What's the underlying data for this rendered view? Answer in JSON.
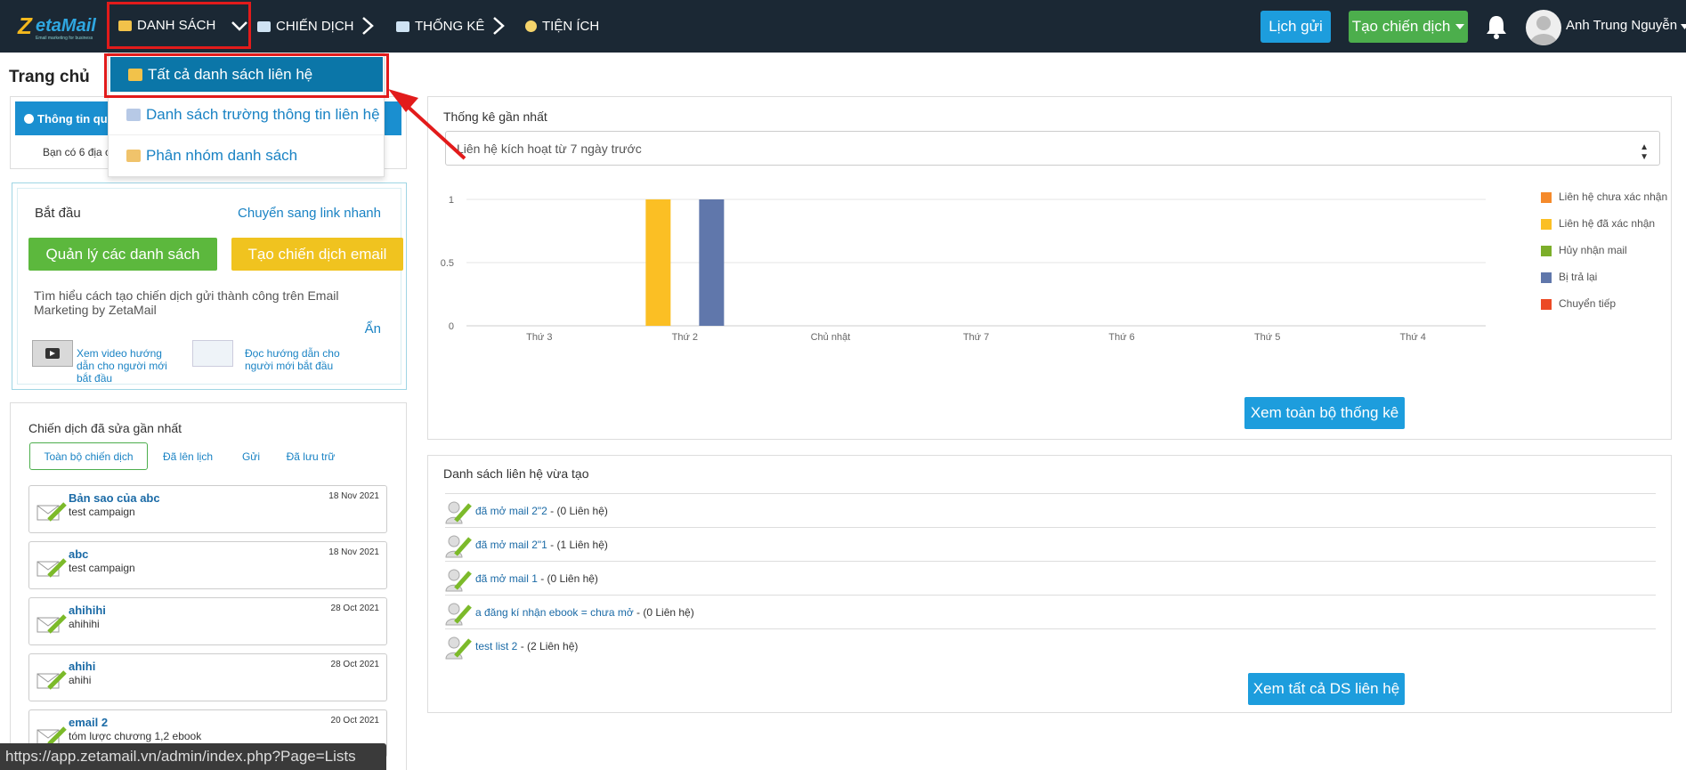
{
  "navbar": {
    "logo_text": "etaMail",
    "logo_letter": "Z",
    "logo_tagline": "Email marketing for business",
    "menu": [
      {
        "label": "DANH SÁCH"
      },
      {
        "label": "CHIẾN DỊCH"
      },
      {
        "label": "THỐNG KÊ"
      },
      {
        "label": "TIỆN ÍCH"
      }
    ],
    "schedule_button": "Lịch gửi",
    "create_campaign_button": "Tạo chiến dịch",
    "user_name": "Anh Trung Nguyễn"
  },
  "dropdown": {
    "items": [
      {
        "label": "Tất cả danh sách liên hệ"
      },
      {
        "label": "Danh sách trường thông tin liên hệ"
      },
      {
        "label": "Phân nhóm danh sách"
      }
    ]
  },
  "page": {
    "title": "Trang chủ"
  },
  "info_panel": {
    "heading": "Thông tin qua",
    "body": "Bạn có 6 địa c"
  },
  "start_panel": {
    "title": "Bắt đầu",
    "quick_link": "Chuyển sang link nhanh",
    "manage_lists_button": "Quản lý các danh sách",
    "create_email_button": "Tạo chiến dịch email",
    "learn_text": "Tìm hiểu cách tạo chiến dịch gửi thành công trên Email Marketing by ZetaMail",
    "hide_link": "Ẩn",
    "video_guide": "Xem video hướng dẫn cho người mới bắt đầu",
    "read_guide": "Đọc hướng dẫn cho người mới bắt đầu"
  },
  "campaigns_panel": {
    "title": "Chiến dịch đã sửa gần nhất",
    "tabs": [
      {
        "label": "Toàn bộ chiến dịch"
      },
      {
        "label": "Đã lên lịch"
      },
      {
        "label": "Gửi"
      },
      {
        "label": "Đã lưu trữ"
      }
    ],
    "items": [
      {
        "name": "Bản sao của abc",
        "subject": "test campaign",
        "date": "18 Nov 2021"
      },
      {
        "name": "abc",
        "subject": "test campaign",
        "date": "18 Nov 2021"
      },
      {
        "name": "ahihihi",
        "subject": "ahihihi",
        "date": "28 Oct 2021"
      },
      {
        "name": "ahihi",
        "subject": "ahihi",
        "date": "28 Oct 2021"
      },
      {
        "name": "email 2",
        "subject": "tóm lược chương 1,2 ebook",
        "date": "20 Oct 2021"
      }
    ]
  },
  "status_bar": {
    "url": "https://app.zetamail.vn/admin/index.php?Page=Lists"
  },
  "stats_panel": {
    "title": "Thống kê gần nhất",
    "select_value": "Liên hệ kích hoạt từ 7 ngày trước",
    "view_all_button": "Xem toàn bộ thống kê"
  },
  "chart_data": {
    "type": "bar",
    "categories": [
      "Thứ 3",
      "Thứ 2",
      "Chủ nhật",
      "Thứ 7",
      "Thứ 6",
      "Thứ 5",
      "Thứ 4"
    ],
    "ylim": [
      0,
      1
    ],
    "yticks": [
      "0",
      "0.5",
      "1"
    ],
    "grid": true,
    "legend_position": "right",
    "series": [
      {
        "name": "Liên hệ chưa xác nhận",
        "color": "#f58a2b",
        "values": [
          0,
          0,
          0,
          0,
          0,
          0,
          0
        ]
      },
      {
        "name": "Liên hệ đã xác nhận",
        "color": "#fbbf24",
        "values": [
          0,
          1,
          0,
          0,
          0,
          0,
          0
        ]
      },
      {
        "name": "Hủy nhận mail",
        "color": "#7cae2a",
        "values": [
          0,
          0,
          0,
          0,
          0,
          0,
          0
        ]
      },
      {
        "name": "Bị trả lại",
        "color": "#6077ab",
        "values": [
          0,
          1,
          0,
          0,
          0,
          0,
          0
        ]
      },
      {
        "name": "Chuyển tiếp",
        "color": "#ec4a25",
        "values": [
          0,
          0,
          0,
          0,
          0,
          0,
          0
        ]
      }
    ]
  },
  "lists_panel": {
    "title": "Danh sách liên hệ vừa tạo",
    "items": [
      {
        "name": "đã mở mail 2\"2",
        "count": " - (0 Liên hệ)"
      },
      {
        "name": "đã mở mail 2\"1",
        "count": " - (1 Liên hệ)"
      },
      {
        "name": "đã mở mail 1",
        "count": " - (0 Liên hệ)"
      },
      {
        "name": "a đăng kí nhận ebook = chưa mở",
        "count": " - (0 Liên hệ)"
      },
      {
        "name": "test list 2",
        "count": " - (2 Liên hệ)"
      }
    ],
    "view_all_button": "Xem tất cả DS liên hệ"
  }
}
